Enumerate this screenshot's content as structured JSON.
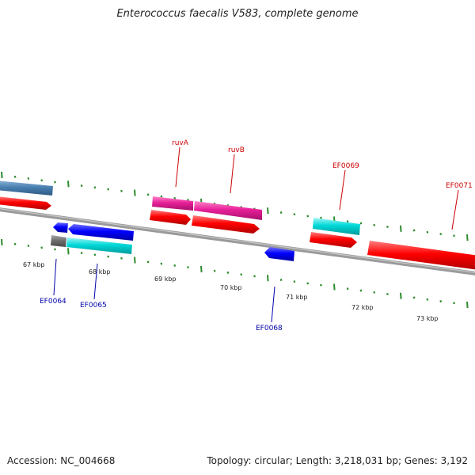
{
  "title": "Enterococcus faecalis V583, complete genome",
  "footer": {
    "accession": "Accession: NC_004668",
    "stats": "Topology: circular; Length: 3,218,031 bp; Genes: 3,192"
  },
  "kbp_labels": [
    "67 kbp",
    "68 kbp",
    "69 kbp",
    "70 kbp",
    "71 kbp",
    "72 kbp",
    "73 kbp"
  ],
  "gene_labels": {
    "ruvA": "ruvA",
    "ruvB": "ruvB",
    "ef0069": "EF0069",
    "ef0071": "EF0071",
    "ef0064": "EF0064",
    "ef0065": "EF0065",
    "ef0068": "EF0068"
  },
  "colors": {
    "backbone": "#808080",
    "tick": "#2e8b2e",
    "cds": "#ff0000",
    "plus_label": "#cc0000",
    "minus_label": "#0000aa",
    "gene_blue": "#0000ff",
    "gene_cyan": "#00d8d8",
    "gene_magenta": "#e8209a",
    "gene_steel": "#4a7fb0",
    "gene_gray": "#707070"
  }
}
